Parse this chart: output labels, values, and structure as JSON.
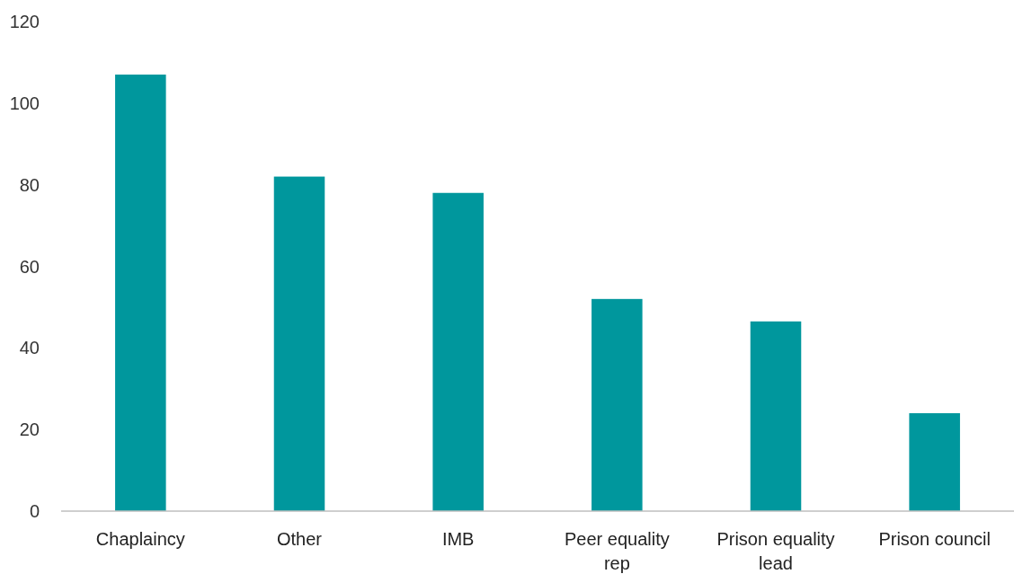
{
  "chart_data": {
    "type": "bar",
    "categories": [
      "Chaplaincy",
      "Other",
      "IMB",
      "Peer equality rep",
      "Prison equality lead",
      "Prison council"
    ],
    "values": [
      107,
      82,
      78,
      52,
      46.5,
      24
    ],
    "color": "#00979d",
    "ylim": [
      0,
      120
    ],
    "yticks": [
      0,
      20,
      40,
      60,
      80,
      100,
      120
    ],
    "grid": false
  }
}
